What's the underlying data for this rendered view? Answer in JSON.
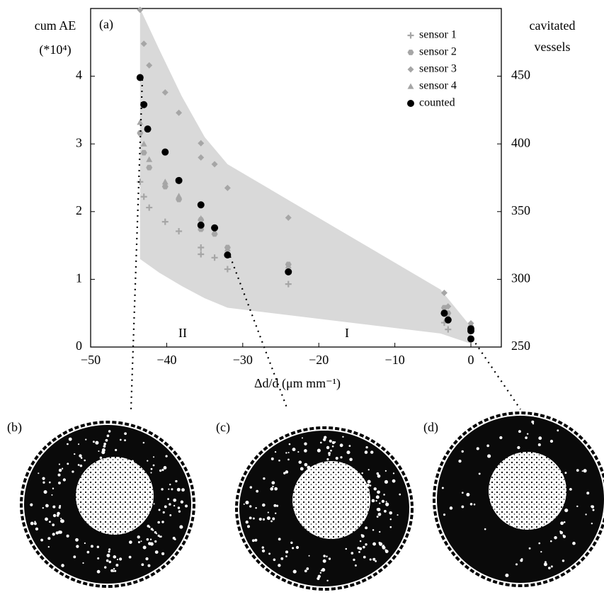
{
  "chart_data": {
    "type": "scatter",
    "panel_label": "(a)",
    "ylabel_lines": [
      "cum AE",
      "(*10⁴)"
    ],
    "y2label_lines": [
      "cavitated",
      "vessels"
    ],
    "xlabel": "Δd/d (μm mm⁻¹)",
    "annotations": [
      "II",
      "I"
    ],
    "xlim": [
      -50,
      4
    ],
    "xticks": [
      {
        "value": -50,
        "label": "−50"
      },
      {
        "value": -40,
        "label": "−40"
      },
      {
        "value": -30,
        "label": "−30"
      },
      {
        "value": -20,
        "label": "−20"
      },
      {
        "value": -10,
        "label": "−10"
      },
      0
    ],
    "ylim": [
      0,
      5
    ],
    "yticks": [
      0,
      1,
      2,
      3,
      4
    ],
    "y2lim": [
      250,
      500
    ],
    "y2ticks": [
      250,
      300,
      350,
      400,
      450
    ],
    "legend": "upper right",
    "band": {
      "color": "#d9d9d9",
      "x": [
        -43.5,
        -41,
        -38,
        -35,
        -32,
        -4,
        0
      ],
      "upper": [
        5,
        4.4,
        3.7,
        3.1,
        2.7,
        0.85,
        0.3
      ],
      "lower": [
        1.3,
        1.1,
        0.9,
        0.72,
        0.58,
        0.2,
        0.05
      ]
    },
    "series": [
      {
        "name": "sensor 1",
        "color": "#a6a6a6",
        "marker": "plus",
        "x": [
          -43.5,
          -43,
          -42.3,
          -40.2,
          -38.4,
          -35.5,
          -35.5,
          -33.7,
          -32,
          -24,
          -3.5,
          -3,
          0
        ],
        "values": [
          2.44,
          2.22,
          2.06,
          1.85,
          1.71,
          1.47,
          1.37,
          1.32,
          1.15,
          0.93,
          0.36,
          0.26,
          0.1
        ]
      },
      {
        "name": "sensor 2",
        "color": "#a6a6a6",
        "marker": "hexagon",
        "x": [
          -43.5,
          -43,
          -42.3,
          -40.2,
          -38.4,
          -35.5,
          -35.5,
          -33.7,
          -32,
          -24,
          -3.5,
          -3,
          0
        ],
        "values": [
          3.16,
          2.87,
          2.65,
          2.37,
          2.18,
          1.88,
          1.74,
          1.67,
          1.47,
          1.22,
          0.58,
          0.5,
          0.3
        ]
      },
      {
        "name": "sensor 3",
        "color": "#a6a6a6",
        "marker": "diamond",
        "x": [
          -43.5,
          -43,
          -42.3,
          -40.2,
          -38.4,
          -35.5,
          -35.5,
          -33.7,
          -32,
          -24,
          -3.5,
          -3,
          0
        ],
        "values": [
          4.98,
          4.48,
          4.16,
          3.76,
          3.46,
          3.01,
          2.8,
          2.7,
          2.35,
          1.91,
          0.8,
          0.6,
          0.35
        ]
      },
      {
        "name": "sensor 4",
        "color": "#a6a6a6",
        "marker": "triangle",
        "x": [
          -43.5,
          -43,
          -42.3,
          -40.2,
          -38.4,
          -35.5,
          -35.5,
          -33.7,
          -32,
          -24,
          -3.5,
          -3,
          0
        ],
        "values": [
          3.32,
          3.0,
          2.77,
          2.44,
          2.23,
          1.9,
          1.76,
          1.7,
          1.45,
          1.2,
          0.55,
          0.45,
          0.28
        ]
      },
      {
        "name": "counted",
        "color": "#000000",
        "marker": "circle",
        "axis": "y2",
        "x": [
          -43.5,
          -43,
          -42.5,
          -40.2,
          -38.4,
          -35.5,
          -35.5,
          -33.7,
          -32,
          -24,
          -3.5,
          -3,
          0,
          0,
          0
        ],
        "values": [
          449,
          429,
          411,
          394,
          373,
          355,
          340,
          338,
          318,
          305.5,
          275,
          270,
          263.5,
          262,
          256
        ]
      }
    ]
  },
  "panels": [
    "(b)",
    "(c)",
    "(d)"
  ]
}
